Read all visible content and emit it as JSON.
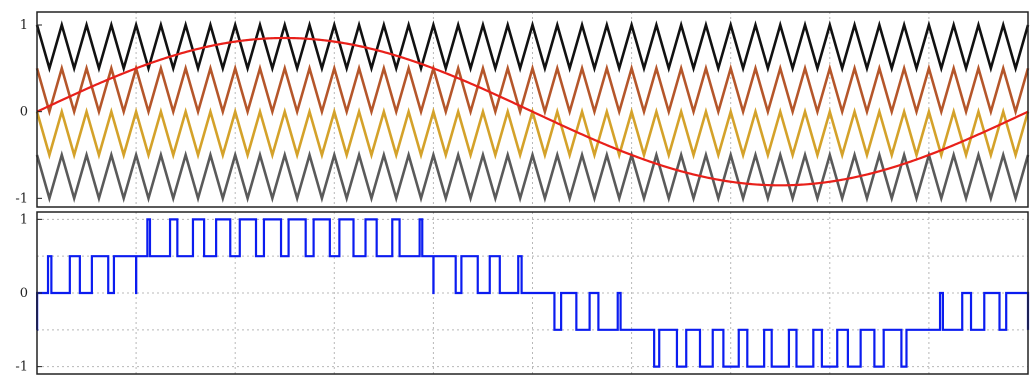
{
  "chart_data": [
    {
      "type": "line",
      "title": "",
      "xlabel": "",
      "ylabel": "",
      "xlim": [
        0,
        1
      ],
      "ylim": [
        -1.1,
        1.15
      ],
      "yticks": [
        1,
        0,
        -1
      ],
      "ytick_labels": [
        "1",
        "0",
        "-1"
      ],
      "xgrid": [
        0,
        0.1,
        0.2,
        0.3,
        0.4,
        0.5,
        0.6,
        0.7,
        0.8,
        0.9,
        1.0
      ],
      "grid": true,
      "legend": null,
      "carrier_cycles": 40,
      "series": [
        {
          "kind": "triangle",
          "low": 0.5,
          "high": 1.0,
          "color": "#111111"
        },
        {
          "kind": "triangle",
          "low": 0.0,
          "high": 0.5,
          "color": "#b5562a"
        },
        {
          "kind": "triangle",
          "low": -0.5,
          "high": 0.0,
          "color": "#d4a22a"
        },
        {
          "kind": "triangle",
          "low": -1.0,
          "high": -0.5,
          "color": "#5a5a5a"
        },
        {
          "kind": "sine",
          "amplitude": 0.85,
          "offset": 0.0,
          "cycles": 1,
          "color": "#e8201a"
        }
      ]
    },
    {
      "type": "line",
      "title": "",
      "xlabel": "",
      "ylabel": "",
      "xlim": [
        0,
        1
      ],
      "ylim": [
        -1.1,
        1.1
      ],
      "yticks": [
        1,
        0,
        -1
      ],
      "ytick_labels": [
        "1",
        "0",
        "-1"
      ],
      "xgrid": [
        0,
        0.1,
        0.2,
        0.3,
        0.4,
        0.5,
        0.6,
        0.7,
        0.8,
        0.9,
        1.0
      ],
      "ygrid": [
        1,
        0.5,
        0,
        -0.5,
        -1
      ],
      "grid": true,
      "legend": null,
      "series": [
        {
          "kind": "multilevel-pwm",
          "levels": [
            -1,
            -0.5,
            0,
            0.5,
            1
          ],
          "derived_from": "panel-1",
          "color": "#0b1cf0"
        }
      ]
    }
  ]
}
